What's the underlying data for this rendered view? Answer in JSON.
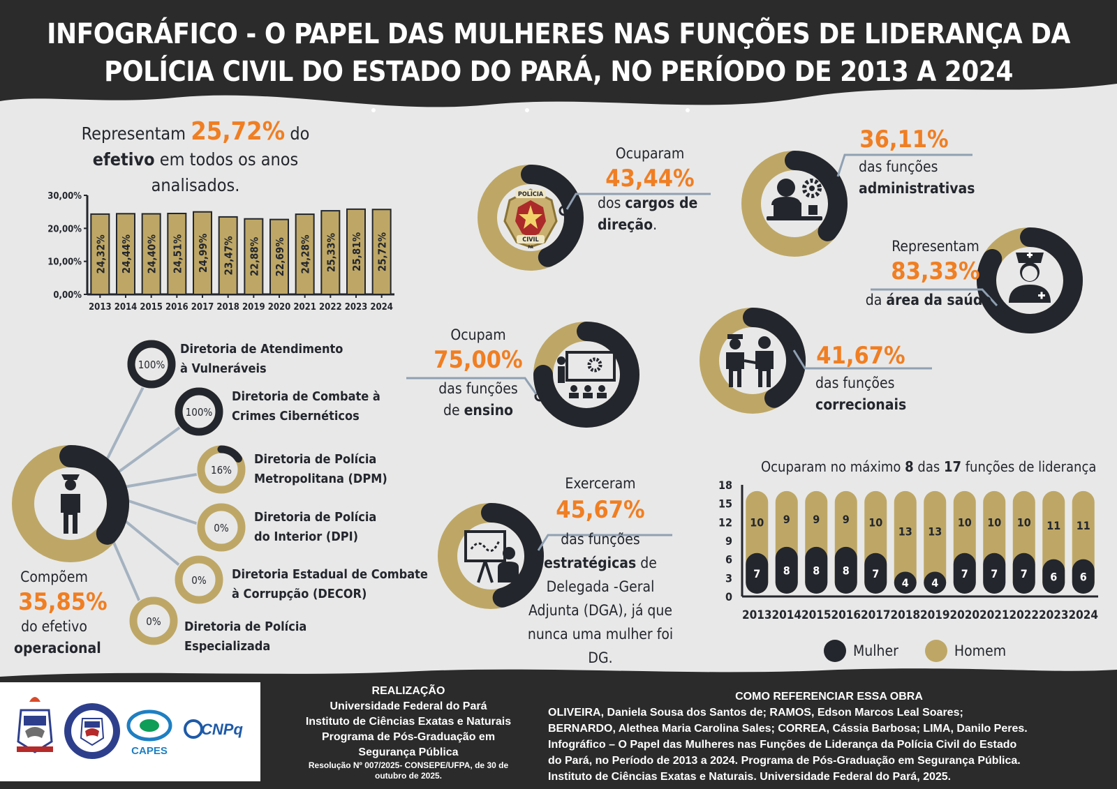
{
  "colors": {
    "dark": "#23262d",
    "gold": "#bea766",
    "orange": "#f07e22",
    "bg": "#e8e8e8",
    "line": "#8fa0b2"
  },
  "title": "INFOGRÁFICO - O PAPEL DAS MULHERES NAS FUNÇÕES DE LIDERANÇA DA POLÍCIA CIVIL DO ESTADO DO PARÁ, NO PERÍODO DE 2013 A 2024",
  "efetivo": {
    "prefix": "Representam",
    "pct": "25,72%",
    "suffix": "do",
    "bold": "efetivo",
    "rest": "em todos os anos analisados."
  },
  "chart_data": [
    {
      "type": "bar",
      "categories": [
        "2013",
        "2014",
        "2015",
        "2016",
        "2017",
        "2018",
        "2019",
        "2020",
        "2021",
        "2022",
        "2023",
        "2024"
      ],
      "values": [
        24.32,
        24.44,
        24.4,
        24.51,
        24.99,
        23.47,
        22.88,
        22.69,
        24.28,
        25.33,
        25.81,
        25.72
      ],
      "value_labels": [
        "24,32%",
        "24,44%",
        "24,40%",
        "24,51%",
        "24,99%",
        "23,47%",
        "22,88%",
        "22,69%",
        "24,28%",
        "25,33%",
        "25,81%",
        "25,72%"
      ],
      "yticks": [
        "0,00%",
        "10,00%",
        "20,00%",
        "30,00%"
      ],
      "ylim": [
        0,
        30
      ]
    },
    {
      "type": "bar",
      "stacked": true,
      "title_parts": [
        "Ocuparam no máximo",
        "8",
        "das",
        "17",
        "funções de liderança"
      ],
      "categories": [
        "2013",
        "2014",
        "2015",
        "2016",
        "2017",
        "2018",
        "2019",
        "2020",
        "2021",
        "2022",
        "2023",
        "2024"
      ],
      "series": [
        {
          "name": "Mulher",
          "values": [
            7,
            8,
            8,
            8,
            7,
            4,
            4,
            7,
            7,
            7,
            6,
            6
          ]
        },
        {
          "name": "Homem",
          "values": [
            10,
            9,
            9,
            9,
            10,
            13,
            13,
            10,
            10,
            10,
            11,
            11
          ]
        }
      ],
      "yticks": [
        "0",
        "3",
        "6",
        "9",
        "12",
        "15",
        "18"
      ],
      "ylim": [
        0,
        18
      ]
    }
  ],
  "direcao": {
    "pre": "Ocuparam",
    "pct": "43,44%",
    "line1_a": "dos",
    "line1_b": "cargos de",
    "line2_b": "direção",
    "line2_c": ".",
    "value": 43.44,
    "badge_top": "POLÍCIA",
    "badge_bottom": "CIVIL",
    "badge_pa": "PA"
  },
  "administrativas": {
    "pct": "36,11%",
    "line1": "das funções",
    "line2": "administrativas",
    "value": 36.11
  },
  "saude": {
    "pre": "Representam",
    "pct": "83,33%",
    "line_a": "da",
    "line_b": "área da saúde",
    "value": 83.33
  },
  "ensino": {
    "pre": "Ocupam",
    "pct": "75,00%",
    "line1": "das funções",
    "line2_a": "de",
    "line2_b": "ensino",
    "value": 75.0
  },
  "correcionais": {
    "pct": "41,67%",
    "line1": "das funções",
    "line2": "correcionais",
    "value": 41.67
  },
  "estrategicas": {
    "pre": "Exerceram",
    "pct": "45,67%",
    "l1": "das funções",
    "l2a": "estratégicas",
    "l2b": "de",
    "l3": "Delegada -Geral",
    "l4": "Adjunta (DGA), já que",
    "l5": "nunca uma mulher foi DG.",
    "value": 45.67
  },
  "operacional": {
    "pre": "Compõem",
    "pct": "35,85%",
    "l1": "do efetivo",
    "l2": "operacional",
    "value": 35.85
  },
  "diretorias": [
    {
      "pct": "100%",
      "value": 100,
      "l1": "Diretoria de Atendimento",
      "l2": "à Vulneráveis"
    },
    {
      "pct": "100%",
      "value": 100,
      "l1": "Diretoria de Combate à",
      "l2": "Crimes Cibernéticos"
    },
    {
      "pct": "16%",
      "value": 16,
      "l1": "Diretoria de Polícia",
      "l2": "Metropolitana (DPM)"
    },
    {
      "pct": "0%",
      "value": 0,
      "l1": "Diretoria de Polícia",
      "l2": "do Interior (DPI)"
    },
    {
      "pct": "0%",
      "value": 0,
      "l1": "Diretoria Estadual de Combate",
      "l2": "à Corrupção (DECOR)"
    },
    {
      "pct": "0%",
      "value": 0,
      "l1": "Diretoria de Polícia",
      "l2": "Especializada"
    }
  ],
  "legend": {
    "mulher": "Mulher",
    "homem": "Homem"
  },
  "logos": {
    "capes": "CAPES",
    "cnpq": "CNPq"
  },
  "realizacao": {
    "title": "REALIZAÇÃO",
    "l1": "Universidade Federal do Pará",
    "l2": "Instituto de Ciências Exatas e Naturais",
    "l3": "Programa de Pós-Graduação em",
    "l4": "Segurança Pública",
    "l5": "Resolução Nº 007/2025- CONSEPE/UFPA, de 30 de",
    "l6": "outubro de 2025."
  },
  "referencia": {
    "title": "COMO REFERENCIAR ESSA OBRA",
    "l1": "OLIVEIRA, Daniela Sousa dos Santos de; RAMOS, Edson Marcos Leal Soares;",
    "l2": "BERNARDO, Alethea Maria Carolina Sales; CORREA, Cássia Barbosa; LIMA, Danilo Peres.",
    "l3": "Infográfico – O Papel das Mulheres nas Funções de Liderança da Polícia Civil do Estado",
    "l4": "do Pará, no Período de 2013 a 2024. Programa de Pós-Graduação em Segurança Pública.",
    "l5": "Instituto de Ciências Exatas e Naturais. Universidade Federal do Pará, 2025."
  }
}
